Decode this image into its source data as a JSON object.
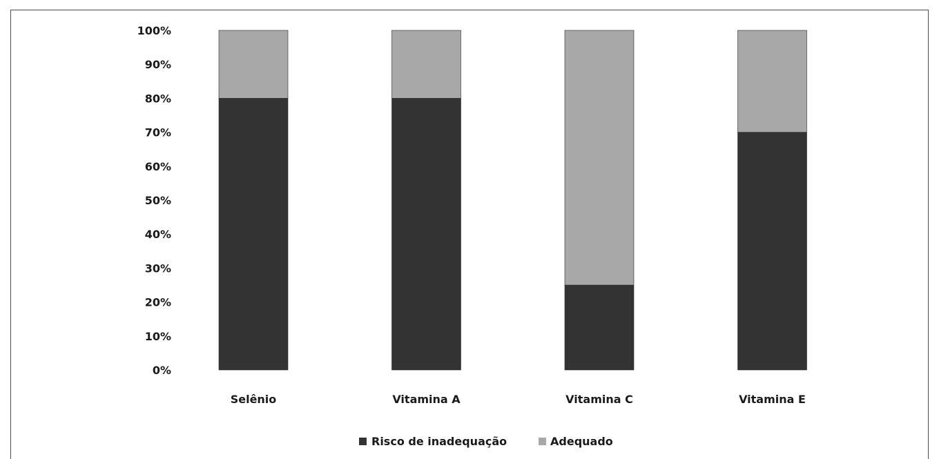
{
  "chart_data": {
    "type": "bar",
    "stacked": true,
    "categories": [
      "Selênio",
      "Vitamina A",
      "Vitamina C",
      "Vitamina E"
    ],
    "series": [
      {
        "name": "Risco de inadequação",
        "values": [
          80,
          80,
          25,
          70
        ],
        "color": "#333333"
      },
      {
        "name": "Adequado",
        "values": [
          20,
          20,
          75,
          30
        ],
        "color": "#a8a8a8"
      }
    ],
    "y_ticks": [
      "0%",
      "10%",
      "20%",
      "30%",
      "40%",
      "50%",
      "60%",
      "70%",
      "80%",
      "90%",
      "100%"
    ],
    "ylim": [
      0,
      100
    ],
    "grid": false,
    "legend_position": "bottom"
  }
}
